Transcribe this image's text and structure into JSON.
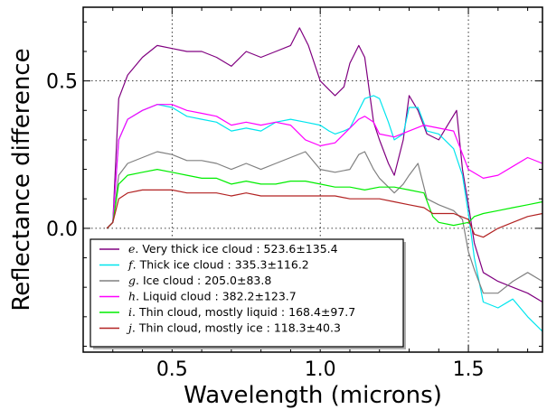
{
  "chart_data": {
    "type": "line",
    "title": "",
    "xlabel": "Wavelength (microns)",
    "ylabel": "Reflectance difference",
    "xlim": [
      0.2,
      1.75
    ],
    "ylim": [
      -0.42,
      0.75
    ],
    "x_ticks": [
      {
        "value": 0.5,
        "label": "0.5"
      },
      {
        "value": 1.0,
        "label": "1.0"
      },
      {
        "value": 1.5,
        "label": "1.5"
      }
    ],
    "y_ticks": [
      {
        "value": 0.0,
        "label": "0.0"
      },
      {
        "value": 0.5,
        "label": "0.5"
      }
    ],
    "grid": true,
    "legend_position": "bottom-left",
    "series": [
      {
        "name": "Very thick ice cloud : 523.6±135.4",
        "letter": "e",
        "color": "#800080",
        "x": [
          0.28,
          0.3,
          0.32,
          0.35,
          0.4,
          0.45,
          0.5,
          0.55,
          0.6,
          0.65,
          0.7,
          0.75,
          0.8,
          0.85,
          0.9,
          0.93,
          0.96,
          1.0,
          1.03,
          1.05,
          1.08,
          1.1,
          1.13,
          1.15,
          1.18,
          1.2,
          1.23,
          1.25,
          1.28,
          1.3,
          1.33,
          1.36,
          1.4,
          1.43,
          1.46,
          1.48,
          1.5,
          1.52,
          1.55,
          1.6,
          1.65,
          1.7,
          1.75
        ],
        "y": [
          0.0,
          0.02,
          0.44,
          0.52,
          0.58,
          0.62,
          0.61,
          0.6,
          0.6,
          0.58,
          0.55,
          0.6,
          0.58,
          0.6,
          0.62,
          0.68,
          0.62,
          0.5,
          0.47,
          0.45,
          0.48,
          0.56,
          0.62,
          0.58,
          0.36,
          0.3,
          0.22,
          0.18,
          0.3,
          0.45,
          0.4,
          0.32,
          0.3,
          0.35,
          0.4,
          0.2,
          0.08,
          -0.05,
          -0.15,
          -0.18,
          -0.2,
          -0.22,
          -0.25
        ]
      },
      {
        "name": "Thick ice cloud : 335.3±116.2",
        "letter": "f",
        "color": "#00e5ee",
        "x": [
          0.28,
          0.3,
          0.32,
          0.35,
          0.4,
          0.45,
          0.5,
          0.55,
          0.6,
          0.65,
          0.7,
          0.75,
          0.8,
          0.85,
          0.9,
          0.95,
          1.0,
          1.03,
          1.05,
          1.08,
          1.1,
          1.13,
          1.15,
          1.18,
          1.2,
          1.23,
          1.25,
          1.28,
          1.3,
          1.33,
          1.36,
          1.4,
          1.45,
          1.48,
          1.5,
          1.52,
          1.55,
          1.6,
          1.65,
          1.7,
          1.75
        ],
        "y": [
          0.0,
          0.02,
          0.3,
          0.37,
          0.4,
          0.42,
          0.41,
          0.38,
          0.37,
          0.36,
          0.33,
          0.34,
          0.33,
          0.36,
          0.37,
          0.36,
          0.35,
          0.33,
          0.32,
          0.33,
          0.34,
          0.4,
          0.44,
          0.45,
          0.44,
          0.36,
          0.3,
          0.32,
          0.41,
          0.41,
          0.33,
          0.32,
          0.27,
          0.18,
          0.05,
          -0.1,
          -0.25,
          -0.27,
          -0.24,
          -0.3,
          -0.35
        ]
      },
      {
        "name": "Ice cloud : 205.0±83.8",
        "letter": "g",
        "color": "#808080",
        "x": [
          0.28,
          0.3,
          0.32,
          0.35,
          0.4,
          0.45,
          0.5,
          0.55,
          0.6,
          0.65,
          0.7,
          0.75,
          0.8,
          0.85,
          0.9,
          0.95,
          1.0,
          1.05,
          1.1,
          1.13,
          1.15,
          1.18,
          1.2,
          1.23,
          1.25,
          1.28,
          1.3,
          1.33,
          1.36,
          1.4,
          1.45,
          1.48,
          1.5,
          1.52,
          1.55,
          1.6,
          1.65,
          1.7,
          1.75
        ],
        "y": [
          0.0,
          0.02,
          0.18,
          0.22,
          0.24,
          0.26,
          0.25,
          0.23,
          0.23,
          0.22,
          0.2,
          0.22,
          0.2,
          0.22,
          0.24,
          0.26,
          0.2,
          0.19,
          0.2,
          0.25,
          0.26,
          0.2,
          0.17,
          0.14,
          0.12,
          0.15,
          0.18,
          0.22,
          0.1,
          0.08,
          0.06,
          0.03,
          -0.08,
          -0.14,
          -0.22,
          -0.22,
          -0.18,
          -0.15,
          -0.18
        ]
      },
      {
        "name": "Liquid cloud : 382.2±123.7",
        "letter": "h",
        "color": "#ff00ff",
        "x": [
          0.28,
          0.3,
          0.32,
          0.35,
          0.4,
          0.45,
          0.5,
          0.55,
          0.6,
          0.65,
          0.7,
          0.75,
          0.8,
          0.85,
          0.9,
          0.95,
          1.0,
          1.05,
          1.1,
          1.13,
          1.15,
          1.18,
          1.2,
          1.25,
          1.3,
          1.35,
          1.4,
          1.45,
          1.5,
          1.55,
          1.6,
          1.65,
          1.7,
          1.75
        ],
        "y": [
          0.0,
          0.02,
          0.3,
          0.37,
          0.4,
          0.42,
          0.42,
          0.4,
          0.39,
          0.38,
          0.35,
          0.36,
          0.35,
          0.36,
          0.35,
          0.3,
          0.28,
          0.29,
          0.34,
          0.37,
          0.38,
          0.36,
          0.32,
          0.31,
          0.33,
          0.35,
          0.34,
          0.33,
          0.2,
          0.17,
          0.18,
          0.21,
          0.24,
          0.22
        ]
      },
      {
        "name": "Thin cloud, mostly liquid : 168.4±97.7",
        "letter": "i",
        "color": "#00ee00",
        "x": [
          0.28,
          0.3,
          0.32,
          0.35,
          0.4,
          0.45,
          0.5,
          0.55,
          0.6,
          0.65,
          0.7,
          0.75,
          0.8,
          0.85,
          0.9,
          0.95,
          1.0,
          1.05,
          1.1,
          1.15,
          1.2,
          1.25,
          1.3,
          1.35,
          1.38,
          1.4,
          1.45,
          1.5,
          1.52,
          1.55,
          1.6,
          1.65,
          1.7,
          1.75
        ],
        "y": [
          0.0,
          0.02,
          0.15,
          0.18,
          0.19,
          0.2,
          0.19,
          0.18,
          0.17,
          0.17,
          0.15,
          0.16,
          0.15,
          0.15,
          0.16,
          0.16,
          0.15,
          0.14,
          0.14,
          0.13,
          0.14,
          0.14,
          0.13,
          0.12,
          0.04,
          0.02,
          0.01,
          0.02,
          0.04,
          0.05,
          0.06,
          0.07,
          0.08,
          0.09
        ]
      },
      {
        "name": "Thin cloud, mostly ice : 118.3±40.3",
        "letter": "j",
        "color": "#b22222",
        "x": [
          0.28,
          0.3,
          0.32,
          0.35,
          0.4,
          0.45,
          0.5,
          0.55,
          0.6,
          0.65,
          0.7,
          0.75,
          0.8,
          0.85,
          0.9,
          0.95,
          1.0,
          1.05,
          1.1,
          1.15,
          1.2,
          1.25,
          1.3,
          1.35,
          1.38,
          1.4,
          1.45,
          1.5,
          1.52,
          1.55,
          1.6,
          1.65,
          1.7,
          1.75
        ],
        "y": [
          0.0,
          0.02,
          0.1,
          0.12,
          0.13,
          0.13,
          0.13,
          0.12,
          0.12,
          0.12,
          0.11,
          0.12,
          0.11,
          0.11,
          0.11,
          0.11,
          0.11,
          0.11,
          0.1,
          0.1,
          0.1,
          0.09,
          0.08,
          0.07,
          0.05,
          0.05,
          0.05,
          0.03,
          -0.02,
          -0.03,
          0.0,
          0.02,
          0.04,
          0.05
        ]
      }
    ]
  }
}
